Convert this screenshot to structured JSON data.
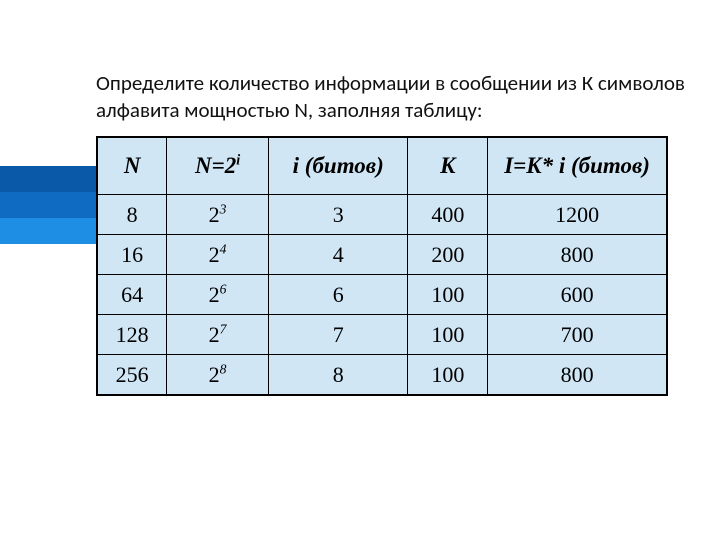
{
  "sidebar": {
    "colors": [
      "#0a58a8",
      "#0f6bc2",
      "#1d8ee4"
    ]
  },
  "text": {
    "prompt": "Определите количество информации в сообщении из К символов алфавита мощностью N, заполняя таблицу:"
  },
  "table": {
    "background_color": "#d0e6f5",
    "border_color": "#000000",
    "header_fontsize": 23,
    "cell_fontsize": 22,
    "columns": [
      {
        "key": "N",
        "label": "N",
        "width": 70
      },
      {
        "key": "N2i",
        "label": "N=2",
        "sup": "i",
        "width": 102
      },
      {
        "key": "i",
        "label": "i (битов)",
        "width": 140
      },
      {
        "key": "K",
        "label": "K",
        "width": 80
      },
      {
        "key": "IKi",
        "label": "I=K* i (битов)",
        "width": 180
      }
    ],
    "rows": [
      {
        "N": "8",
        "base": "2",
        "exp": "3",
        "i": "3",
        "K": "400",
        "IKi": "1200"
      },
      {
        "N": "16",
        "base": "2",
        "exp": "4",
        "i": "4",
        "K": "200",
        "IKi": "800"
      },
      {
        "N": "64",
        "base": "2",
        "exp": "6",
        "i": "6",
        "K": "100",
        "IKi": "600"
      },
      {
        "N": "128",
        "base": "2",
        "exp": "7",
        "i": "7",
        "K": "100",
        "IKi": "700"
      },
      {
        "N": "256",
        "base": "2",
        "exp": "8",
        "i": "8",
        "K": "100",
        "IKi": "800"
      }
    ]
  },
  "page": {
    "background": "#ffffff"
  }
}
